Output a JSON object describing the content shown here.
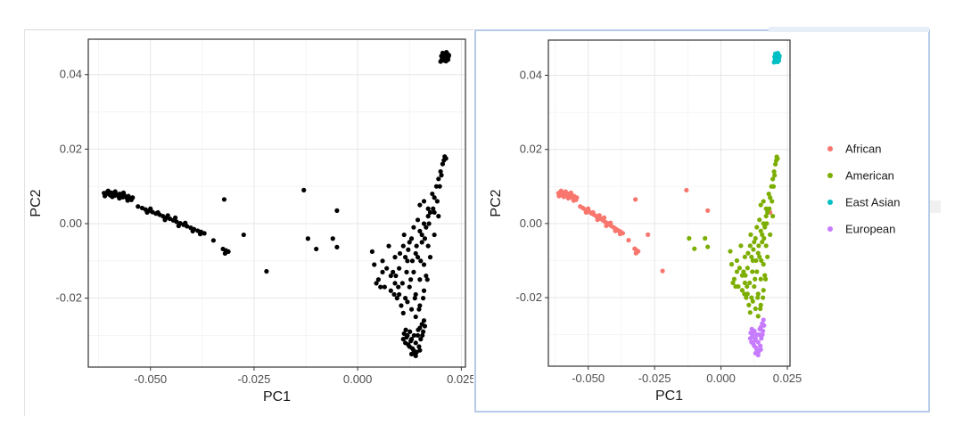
{
  "colors": {
    "African": "#F8766D",
    "American": "#7CAE00",
    "East Asian": "#00BFC4",
    "European": "#C77CFF",
    "mono": "#000000"
  },
  "chart_data": [
    {
      "type": "scatter",
      "title": "",
      "xlabel": "PC1",
      "ylabel": "PC2",
      "xlim": [
        -0.065,
        0.026
      ],
      "ylim": [
        -0.0385,
        0.0495
      ],
      "xticks": [
        -0.05,
        -0.025,
        0.0,
        0.025
      ],
      "xtick_labels": [
        "-0.050",
        "-0.025",
        "0.000",
        "0.025"
      ],
      "yticks": [
        -0.02,
        0.0,
        0.02,
        0.04
      ],
      "ytick_labels": [
        "-0.02",
        "0.00",
        "0.02",
        "0.04"
      ],
      "grid": true,
      "legend": null,
      "color_by_group": false
    },
    {
      "type": "scatter",
      "title": "",
      "xlabel": "PC1",
      "ylabel": "PC2",
      "xlim": [
        -0.065,
        0.026
      ],
      "ylim": [
        -0.0385,
        0.0495
      ],
      "xticks": [
        -0.05,
        -0.025,
        0.0,
        0.025
      ],
      "xtick_labels": [
        "-0.050",
        "-0.025",
        "0.000",
        "0.025"
      ],
      "yticks": [
        -0.02,
        0.0,
        0.02,
        0.04
      ],
      "ytick_labels": [
        "-0.02",
        "0.00",
        "0.02",
        "0.04"
      ],
      "grid": true,
      "legend": "right",
      "legend_entries": [
        "African",
        "American",
        "East Asian",
        "European"
      ],
      "color_by_group": true
    }
  ],
  "series": [
    {
      "name": "African",
      "points": [
        [
          -0.0612,
          0.0082
        ],
        [
          -0.0608,
          0.0078
        ],
        [
          -0.0604,
          0.0085
        ],
        [
          -0.06,
          0.008
        ],
        [
          -0.0597,
          0.0076
        ],
        [
          -0.0594,
          0.0083
        ],
        [
          -0.059,
          0.0079
        ],
        [
          -0.0587,
          0.0075
        ],
        [
          -0.0584,
          0.0081
        ],
        [
          -0.058,
          0.0077
        ],
        [
          -0.0577,
          0.0073
        ],
        [
          -0.0574,
          0.008
        ],
        [
          -0.057,
          0.0075
        ],
        [
          -0.0567,
          0.0071
        ],
        [
          -0.0564,
          0.0078
        ],
        [
          -0.056,
          0.0072
        ],
        [
          -0.0557,
          0.0069
        ],
        [
          -0.0553,
          0.0074
        ],
        [
          -0.055,
          0.0067
        ],
        [
          -0.0546,
          0.0064
        ],
        [
          -0.0543,
          0.007
        ],
        [
          -0.061,
          0.0074
        ],
        [
          -0.0602,
          0.0088
        ],
        [
          -0.0592,
          0.0072
        ],
        [
          -0.0585,
          0.0086
        ],
        [
          -0.0575,
          0.0068
        ],
        [
          -0.0565,
          0.0083
        ],
        [
          -0.0555,
          0.0062
        ],
        [
          -0.052,
          0.0042
        ],
        [
          -0.0512,
          0.0038
        ],
        [
          -0.0503,
          0.0035
        ],
        [
          -0.0495,
          0.0031
        ],
        [
          -0.0487,
          0.0027
        ],
        [
          -0.0478,
          0.0024
        ],
        [
          -0.047,
          0.002
        ],
        [
          -0.0462,
          0.0016
        ],
        [
          -0.0453,
          0.0013
        ],
        [
          -0.0445,
          0.0009
        ],
        [
          -0.0437,
          0.0005
        ],
        [
          -0.0428,
          0.0001
        ],
        [
          -0.042,
          -0.0003
        ],
        [
          -0.0412,
          -0.0007
        ],
        [
          -0.0403,
          -0.0011
        ],
        [
          -0.0395,
          -0.0015
        ],
        [
          -0.0386,
          -0.0019
        ],
        [
          -0.0378,
          -0.0022
        ],
        [
          -0.037,
          -0.0026
        ],
        [
          -0.053,
          0.0046
        ],
        [
          -0.0508,
          0.003
        ],
        [
          -0.0482,
          0.003
        ],
        [
          -0.0465,
          0.001
        ],
        [
          -0.044,
          0.0016
        ],
        [
          -0.0432,
          -0.0006
        ],
        [
          -0.0416,
          0.0002
        ],
        [
          -0.0398,
          -0.002
        ],
        [
          -0.038,
          -0.0028
        ],
        [
          -0.05,
          0.004
        ],
        [
          -0.0458,
          0.0022
        ],
        [
          -0.0348,
          -0.0045
        ],
        [
          -0.0322,
          0.0065
        ],
        [
          -0.0325,
          -0.0068
        ],
        [
          -0.0318,
          -0.0072
        ],
        [
          -0.0312,
          -0.0075
        ],
        [
          -0.032,
          -0.008
        ],
        [
          -0.0275,
          -0.003
        ],
        [
          -0.022,
          -0.0128
        ],
        [
          -0.013,
          0.009
        ],
        [
          -0.005,
          0.0035
        ],
        [
          0.0185,
          0.003
        ]
      ]
    },
    {
      "name": "American",
      "points": [
        [
          -0.012,
          -0.004
        ],
        [
          -0.01,
          -0.0068
        ],
        [
          -0.006,
          -0.004
        ],
        [
          -0.005,
          -0.0063
        ],
        [
          0.0035,
          -0.0075
        ],
        [
          0.005,
          -0.015
        ],
        [
          0.006,
          -0.01
        ],
        [
          0.007,
          -0.012
        ],
        [
          0.008,
          -0.018
        ],
        [
          0.009,
          -0.016
        ],
        [
          0.004,
          -0.011
        ],
        [
          0.0065,
          -0.017
        ],
        [
          0.0085,
          -0.013
        ],
        [
          0.01,
          -0.019
        ],
        [
          0.011,
          -0.006
        ],
        [
          0.012,
          -0.01
        ],
        [
          0.013,
          -0.004
        ],
        [
          0.014,
          -0.008
        ],
        [
          0.015,
          -0.002
        ],
        [
          0.016,
          0.0
        ],
        [
          0.017,
          0.004
        ],
        [
          0.018,
          0.008
        ],
        [
          0.019,
          0.01
        ],
        [
          0.02,
          0.014
        ],
        [
          0.021,
          0.018
        ],
        [
          0.0205,
          0.016
        ],
        [
          0.0195,
          0.012
        ],
        [
          0.0185,
          0.007
        ],
        [
          0.0175,
          0.003
        ],
        [
          0.0165,
          -0.001
        ],
        [
          0.0155,
          -0.005
        ],
        [
          0.0145,
          -0.009
        ],
        [
          0.0135,
          -0.013
        ],
        [
          0.0125,
          -0.017
        ],
        [
          0.0115,
          -0.02
        ],
        [
          0.0105,
          -0.022
        ],
        [
          0.0095,
          -0.02
        ],
        [
          0.011,
          -0.024
        ],
        [
          0.012,
          -0.021
        ],
        [
          0.013,
          -0.023
        ],
        [
          0.014,
          -0.019
        ],
        [
          0.015,
          -0.015
        ],
        [
          0.016,
          -0.011
        ],
        [
          0.014,
          -0.025
        ],
        [
          0.015,
          -0.022
        ],
        [
          0.016,
          -0.018
        ],
        [
          0.0165,
          -0.014
        ],
        [
          0.017,
          -0.006
        ],
        [
          0.0155,
          -0.003
        ],
        [
          0.0145,
          0.001
        ],
        [
          0.0135,
          -0.001
        ],
        [
          0.0125,
          -0.005
        ],
        [
          0.0115,
          -0.009
        ],
        [
          0.01,
          -0.012
        ],
        [
          0.009,
          -0.009
        ],
        [
          0.008,
          -0.014
        ],
        [
          0.0075,
          -0.006
        ],
        [
          0.006,
          -0.013
        ],
        [
          0.0055,
          -0.017
        ],
        [
          0.0045,
          -0.016
        ],
        [
          0.015,
          0.005
        ],
        [
          0.016,
          0.006
        ],
        [
          0.017,
          0.002
        ],
        [
          0.0175,
          -0.009
        ],
        [
          0.0168,
          -0.015
        ],
        [
          0.0158,
          -0.02
        ],
        [
          0.0148,
          -0.023
        ],
        [
          0.0138,
          -0.02
        ],
        [
          0.0128,
          -0.015
        ],
        [
          0.0118,
          -0.013
        ],
        [
          0.0108,
          -0.016
        ],
        [
          0.0098,
          -0.017
        ],
        [
          0.0088,
          -0.019
        ],
        [
          0.0092,
          -0.014
        ],
        [
          0.0102,
          -0.008
        ],
        [
          0.0112,
          -0.003
        ],
        [
          0.0122,
          -0.007
        ],
        [
          0.0132,
          -0.01
        ],
        [
          0.0142,
          -0.006
        ],
        [
          0.0152,
          -0.01
        ],
        [
          0.0162,
          -0.004
        ],
        [
          0.0172,
          0.0
        ],
        [
          0.0182,
          0.004
        ],
        [
          0.0192,
          0.006
        ],
        [
          0.0198,
          0.01
        ],
        [
          0.0202,
          0.013
        ],
        [
          0.0208,
          0.017
        ],
        [
          0.0213,
          0.0175
        ],
        [
          0.0195,
          0.002
        ],
        [
          0.0185,
          -0.003
        ]
      ]
    },
    {
      "name": "East Asian",
      "points": [
        [
          0.02,
          0.0435
        ],
        [
          0.0203,
          0.044
        ],
        [
          0.0206,
          0.0445
        ],
        [
          0.0209,
          0.045
        ],
        [
          0.0212,
          0.0455
        ],
        [
          0.0215,
          0.0447
        ],
        [
          0.0218,
          0.044
        ],
        [
          0.022,
          0.0452
        ],
        [
          0.0202,
          0.045
        ],
        [
          0.0205,
          0.0458
        ],
        [
          0.0208,
          0.0438
        ],
        [
          0.0211,
          0.0443
        ],
        [
          0.0214,
          0.046
        ],
        [
          0.0217,
          0.0455
        ],
        [
          0.021,
          0.0448
        ],
        [
          0.0213,
          0.0436
        ],
        [
          0.0216,
          0.0442
        ],
        [
          0.0207,
          0.0453
        ],
        [
          0.0204,
          0.0446
        ],
        [
          0.0219,
          0.0448
        ]
      ]
    },
    {
      "name": "European",
      "points": [
        [
          0.011,
          -0.031
        ],
        [
          0.0115,
          -0.032
        ],
        [
          0.012,
          -0.03
        ],
        [
          0.0125,
          -0.033
        ],
        [
          0.013,
          -0.031
        ],
        [
          0.0135,
          -0.034
        ],
        [
          0.014,
          -0.032
        ],
        [
          0.0145,
          -0.03
        ],
        [
          0.015,
          -0.028
        ],
        [
          0.0155,
          -0.027
        ],
        [
          0.016,
          -0.026
        ],
        [
          0.0158,
          -0.029
        ],
        [
          0.0152,
          -0.031
        ],
        [
          0.0148,
          -0.033
        ],
        [
          0.0142,
          -0.0345
        ],
        [
          0.0138,
          -0.035
        ],
        [
          0.0132,
          -0.0335
        ],
        [
          0.0128,
          -0.0315
        ],
        [
          0.0122,
          -0.0325
        ],
        [
          0.0118,
          -0.0305
        ],
        [
          0.0112,
          -0.0295
        ],
        [
          0.0116,
          -0.0285
        ],
        [
          0.0126,
          -0.029
        ],
        [
          0.0136,
          -0.03
        ],
        [
          0.0146,
          -0.0285
        ],
        [
          0.0156,
          -0.03
        ],
        [
          0.0162,
          -0.0275
        ],
        [
          0.015,
          -0.034
        ],
        [
          0.014,
          -0.0355
        ],
        [
          0.013,
          -0.035
        ]
      ]
    }
  ]
}
